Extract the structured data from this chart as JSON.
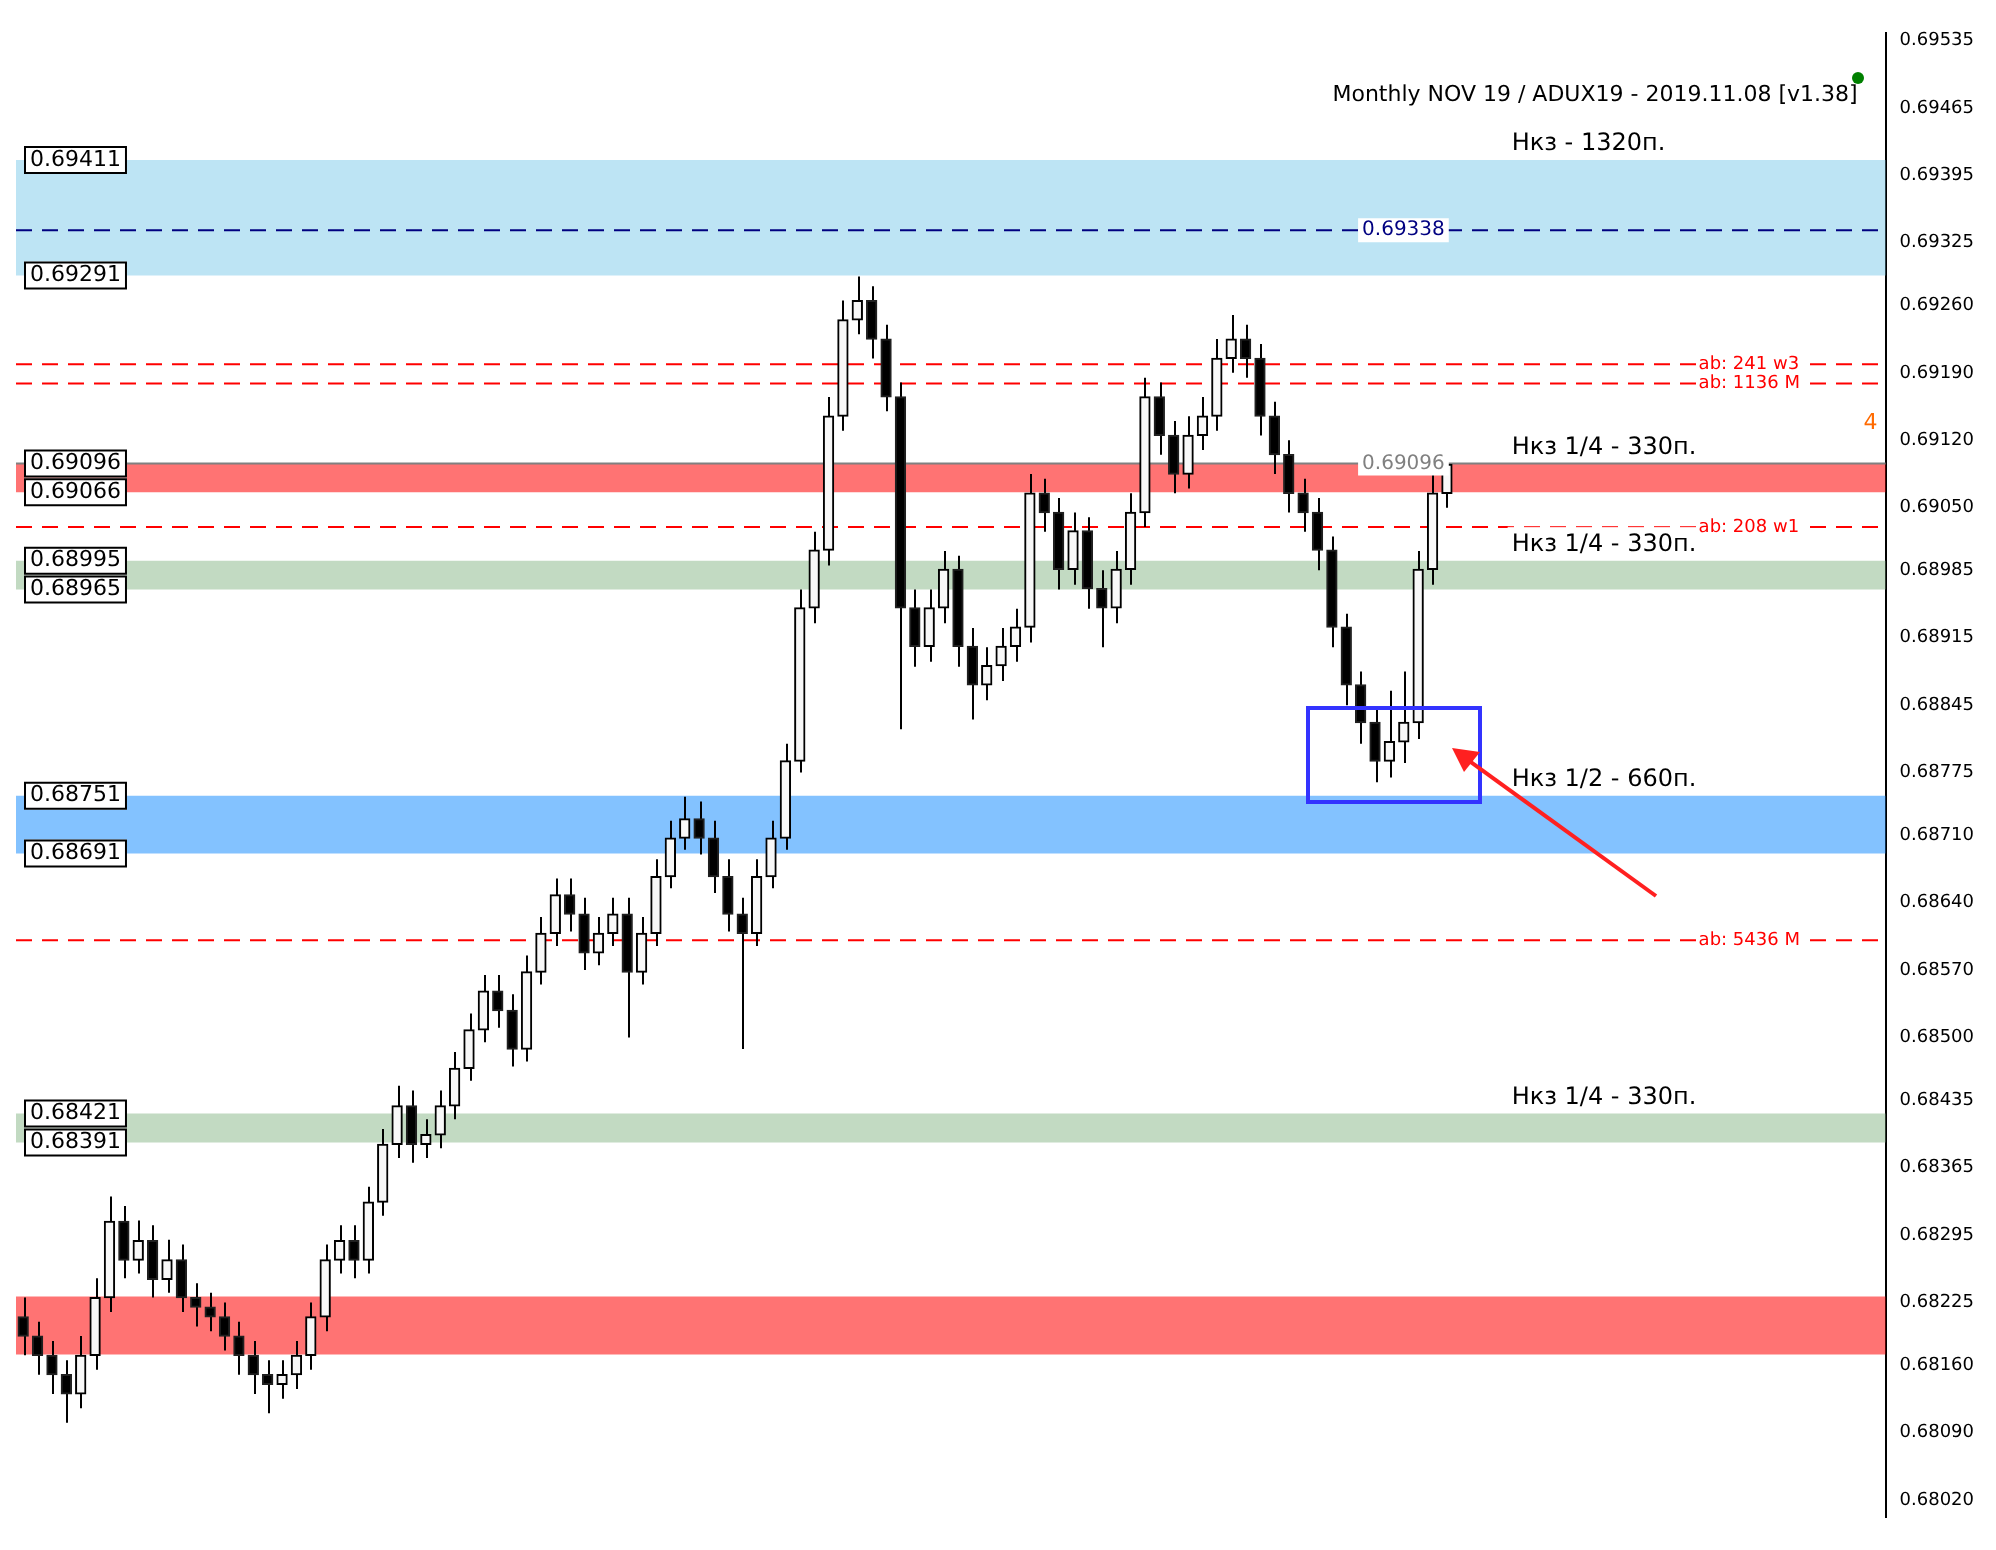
{
  "chart_data": {
    "type": "candlestick",
    "title": "Monthly NOV 19 / ADUX19 - 2019.11.08 [v1.38]",
    "categories": [
      null,
      null,
      null,
      null,
      null,
      null,
      null,
      null,
      null,
      null,
      null,
      null,
      null,
      null,
      null,
      null,
      null,
      null,
      null,
      null,
      null,
      null,
      null,
      null,
      null,
      null,
      null,
      null,
      null,
      null,
      null,
      null,
      null,
      null,
      null,
      null,
      null,
      null,
      null,
      null,
      null,
      null,
      null,
      null,
      null,
      null,
      null,
      null,
      null,
      null,
      null,
      null,
      null,
      null,
      null,
      null,
      null,
      null,
      null,
      null,
      null,
      null,
      null,
      null,
      null,
      null,
      null,
      null,
      null,
      null,
      null,
      null,
      null,
      null,
      null,
      null,
      null,
      null,
      null,
      null,
      null,
      null,
      null,
      null,
      null,
      null,
      null,
      null,
      null,
      null,
      null,
      null,
      null,
      null,
      null,
      null,
      null,
      null,
      null,
      null,
      null,
      null,
      null,
      null,
      null,
      null,
      null,
      null,
      null,
      null,
      null,
      null,
      null,
      null,
      null,
      null,
      null,
      null,
      null,
      null,
      null,
      null,
      null,
      null,
      null,
      null,
      null,
      null,
      null,
      null
    ],
    "ohlc": [
      [
        0.6821,
        0.6823,
        0.6817,
        0.6819
      ],
      [
        0.6819,
        0.68205,
        0.6815,
        0.6817
      ],
      [
        0.6817,
        0.68185,
        0.6813,
        0.6815
      ],
      [
        0.6815,
        0.68165,
        0.681,
        0.6813
      ],
      [
        0.6813,
        0.6819,
        0.68115,
        0.6817
      ],
      [
        0.6817,
        0.6825,
        0.68155,
        0.6823
      ],
      [
        0.6823,
        0.68335,
        0.68215,
        0.68309
      ],
      [
        0.68309,
        0.68325,
        0.6825,
        0.68269
      ],
      [
        0.68269,
        0.6831,
        0.68255,
        0.68289
      ],
      [
        0.68289,
        0.68305,
        0.6823,
        0.68249
      ],
      [
        0.68249,
        0.6829,
        0.68235,
        0.68269
      ],
      [
        0.68269,
        0.68285,
        0.68215,
        0.6823
      ],
      [
        0.6823,
        0.68245,
        0.682,
        0.6822
      ],
      [
        0.6822,
        0.68235,
        0.68195,
        0.6821
      ],
      [
        0.6821,
        0.68225,
        0.68175,
        0.6819
      ],
      [
        0.6819,
        0.68205,
        0.6815,
        0.6817
      ],
      [
        0.6817,
        0.68185,
        0.6813,
        0.6815
      ],
      [
        0.6815,
        0.68165,
        0.6811,
        0.6814
      ],
      [
        0.6814,
        0.68165,
        0.68125,
        0.6815
      ],
      [
        0.6815,
        0.68185,
        0.68135,
        0.6817
      ],
      [
        0.6817,
        0.68225,
        0.68155,
        0.6821
      ],
      [
        0.6821,
        0.68285,
        0.68195,
        0.68269
      ],
      [
        0.68269,
        0.68305,
        0.68255,
        0.68289
      ],
      [
        0.68289,
        0.68305,
        0.6825,
        0.68269
      ],
      [
        0.68269,
        0.68345,
        0.68255,
        0.68329
      ],
      [
        0.68329,
        0.68405,
        0.68315,
        0.68389
      ],
      [
        0.68389,
        0.6845,
        0.68375,
        0.68429
      ],
      [
        0.68429,
        0.68445,
        0.6837,
        0.68389
      ],
      [
        0.68389,
        0.68415,
        0.68375,
        0.68399
      ],
      [
        0.68399,
        0.68445,
        0.68385,
        0.68429
      ],
      [
        0.68429,
        0.68485,
        0.68415,
        0.68468
      ],
      [
        0.68468,
        0.68525,
        0.68455,
        0.68508
      ],
      [
        0.68508,
        0.68565,
        0.68495,
        0.68548
      ],
      [
        0.68548,
        0.68565,
        0.6851,
        0.68528
      ],
      [
        0.68528,
        0.68545,
        0.6847,
        0.68488
      ],
      [
        0.68488,
        0.68585,
        0.68475,
        0.68568
      ],
      [
        0.68568,
        0.68625,
        0.68555,
        0.68608
      ],
      [
        0.68608,
        0.68665,
        0.68595,
        0.68648
      ],
      [
        0.68648,
        0.68665,
        0.6861,
        0.68628
      ],
      [
        0.68628,
        0.68645,
        0.6857,
        0.68588
      ],
      [
        0.68588,
        0.68625,
        0.68575,
        0.68608
      ],
      [
        0.68608,
        0.68645,
        0.68595,
        0.68628
      ],
      [
        0.68628,
        0.68645,
        0.685,
        0.68568
      ],
      [
        0.68568,
        0.68625,
        0.68555,
        0.68608
      ],
      [
        0.68608,
        0.68685,
        0.68595,
        0.68667
      ],
      [
        0.68667,
        0.68725,
        0.68655,
        0.68707
      ],
      [
        0.68707,
        0.6875,
        0.68695,
        0.68727
      ],
      [
        0.68727,
        0.68745,
        0.6869,
        0.68707
      ],
      [
        0.68707,
        0.68725,
        0.6865,
        0.68667
      ],
      [
        0.68667,
        0.68685,
        0.6861,
        0.68628
      ],
      [
        0.68628,
        0.68645,
        0.68488,
        0.68608
      ],
      [
        0.68608,
        0.68685,
        0.68595,
        0.68667
      ],
      [
        0.68667,
        0.68725,
        0.68655,
        0.68707
      ],
      [
        0.68707,
        0.68805,
        0.68695,
        0.68787
      ],
      [
        0.68787,
        0.68965,
        0.68775,
        0.68946
      ],
      [
        0.68946,
        0.69025,
        0.6893,
        0.69006
      ],
      [
        0.69006,
        0.69165,
        0.6899,
        0.69145
      ],
      [
        0.69145,
        0.69265,
        0.6913,
        0.69245
      ],
      [
        0.69245,
        0.6929,
        0.6923,
        0.69265
      ],
      [
        0.69265,
        0.6928,
        0.69205,
        0.69225
      ],
      [
        0.69225,
        0.6924,
        0.6915,
        0.69165
      ],
      [
        0.69165,
        0.6918,
        0.6882,
        0.68946
      ],
      [
        0.68946,
        0.68965,
        0.68885,
        0.68906
      ],
      [
        0.68906,
        0.68965,
        0.6889,
        0.68946
      ],
      [
        0.68946,
        0.69005,
        0.6893,
        0.68986
      ],
      [
        0.68986,
        0.69,
        0.68885,
        0.68906
      ],
      [
        0.68906,
        0.68925,
        0.6883,
        0.68866
      ],
      [
        0.68866,
        0.68905,
        0.6885,
        0.68886
      ],
      [
        0.68886,
        0.68925,
        0.6887,
        0.68906
      ],
      [
        0.68906,
        0.68945,
        0.6889,
        0.68926
      ],
      [
        0.68926,
        0.69085,
        0.6891,
        0.69065
      ],
      [
        0.69065,
        0.6908,
        0.69025,
        0.69045
      ],
      [
        0.69045,
        0.6906,
        0.68965,
        0.68986
      ],
      [
        0.68986,
        0.69045,
        0.6897,
        0.69026
      ],
      [
        0.69026,
        0.6904,
        0.68945,
        0.68966
      ],
      [
        0.68966,
        0.68985,
        0.68905,
        0.68946
      ],
      [
        0.68946,
        0.69005,
        0.6893,
        0.68986
      ],
      [
        0.68986,
        0.69065,
        0.6897,
        0.69045
      ],
      [
        0.69045,
        0.69185,
        0.6903,
        0.69165
      ],
      [
        0.69165,
        0.6918,
        0.69105,
        0.69125
      ],
      [
        0.69125,
        0.6914,
        0.69065,
        0.69085
      ],
      [
        0.69085,
        0.69145,
        0.6907,
        0.69125
      ],
      [
        0.69125,
        0.69165,
        0.6911,
        0.69145
      ],
      [
        0.69145,
        0.69225,
        0.6913,
        0.69205
      ],
      [
        0.69205,
        0.6925,
        0.6919,
        0.69225
      ],
      [
        0.69225,
        0.6924,
        0.69185,
        0.69205
      ],
      [
        0.69205,
        0.6922,
        0.69125,
        0.69145
      ],
      [
        0.69145,
        0.6916,
        0.69085,
        0.69105
      ],
      [
        0.69105,
        0.6912,
        0.69045,
        0.69065
      ],
      [
        0.69065,
        0.6908,
        0.69025,
        0.69045
      ],
      [
        0.69045,
        0.6906,
        0.68985,
        0.69006
      ],
      [
        0.69006,
        0.6902,
        0.68905,
        0.68926
      ],
      [
        0.68926,
        0.6894,
        0.68845,
        0.68866
      ],
      [
        0.68866,
        0.6888,
        0.68805,
        0.68827
      ],
      [
        0.68827,
        0.6884,
        0.68765,
        0.68787
      ],
      [
        0.68787,
        0.6886,
        0.6877,
        0.68807
      ],
      [
        0.68807,
        0.6888,
        0.68785,
        0.68827
      ],
      [
        0.68827,
        0.69005,
        0.6881,
        0.68986
      ],
      [
        0.68986,
        0.69085,
        0.6897,
        0.69065
      ],
      [
        0.69065,
        0.691,
        0.6905,
        0.69095
      ],
      null,
      null,
      null,
      null,
      null,
      null,
      null,
      null,
      null,
      null,
      null,
      null,
      null,
      null,
      null,
      null,
      null,
      null,
      null,
      null,
      null,
      null,
      null,
      null,
      null,
      null,
      null,
      null,
      null,
      null
    ],
    "ylim": [
      0.68002,
      0.69543
    ],
    "yticks": [
      0.69535,
      0.69465,
      0.69395,
      0.69325,
      {
        "value": 0.6926,
        "label": "0.69260"
      },
      {
        "value": 0.6919,
        "label": "0.69190"
      },
      {
        "value": 0.6912,
        "label": "0.69120"
      },
      {
        "value": 0.6905,
        "label": "0.69050"
      },
      0.68985,
      0.68915,
      0.68845,
      0.68775,
      {
        "value": 0.6871,
        "label": "0.68710"
      },
      {
        "value": 0.6864,
        "label": "0.68640"
      },
      {
        "value": 0.6857,
        "label": "0.68570"
      },
      {
        "value": 0.685,
        "label": "0.68500"
      },
      0.68435,
      0.68365,
      0.68295,
      0.68225,
      {
        "value": 0.6816,
        "label": "0.68160"
      },
      {
        "value": 0.6809,
        "label": "0.68090"
      },
      {
        "value": 0.6802,
        "label": "0.68020"
      }
    ],
    "tick_labels": "y",
    "bands": [
      {
        "axis": "y",
        "from": 0.69291,
        "to": 0.69411,
        "label": "Нкз - 1320п.",
        "color": "#87ceeb"
      },
      {
        "axis": "y",
        "from": 0.68691,
        "to": 0.68751,
        "label": "Нкз 1/2 - 660п.",
        "color": "#1e90ff"
      },
      {
        "axis": "y",
        "from": 0.68391,
        "to": 0.68421,
        "label": "Нкз 1/4 - 330п.",
        "color": "#8fbc8f"
      },
      {
        "axis": "y",
        "from": 0.68965,
        "to": 0.68995,
        "label": "Нкз 1/4 - 330п.",
        "color": "#8fbc8f"
      },
      {
        "axis": "y",
        "from": 0.69066,
        "to": 0.69096,
        "label": "Нкз 1/4 - 330п.",
        "color": "#ff0000"
      },
      {
        "axis": "y",
        "from": 0.68171,
        "to": 0.68231,
        "color": "#ff0000"
      }
    ],
    "ref_lines": [
      {
        "axis": "y",
        "value": 0.69338,
        "label": "0.69338",
        "color": "#000080",
        "line_style": "dashed"
      },
      {
        "axis": "y",
        "value": 0.69096,
        "label": "0.69096",
        "color": "#808080",
        "line_style": "solid"
      },
      {
        "axis": "y",
        "value": 0.69199,
        "color": "#ff0000",
        "line_style": "dashed"
      },
      {
        "axis": "y",
        "value": 0.69179,
        "color": "#ff0000",
        "line_style": "dashed"
      },
      {
        "axis": "y",
        "value": 0.6903,
        "color": "#ff0000",
        "line_style": "dashed"
      },
      {
        "axis": "y",
        "value": 0.68601,
        "color": "#ff0000",
        "line_style": "dashed"
      }
    ],
    "annotations": [
      {
        "text": "0.69411",
        "y": 0.69411
      },
      {
        "text": "0.69291",
        "y": 0.69291
      },
      {
        "text": "0.68751",
        "y": 0.68751
      },
      {
        "text": "0.68691",
        "y": 0.68691
      },
      {
        "text": "0.68421",
        "y": 0.68421
      },
      {
        "text": "0.68391",
        "y": 0.68391
      },
      {
        "text": "0.68995",
        "y": 0.68995
      },
      {
        "text": "0.68965",
        "y": 0.68965
      },
      {
        "text": "0.69096",
        "y": 0.69096
      },
      {
        "text": "0.69066",
        "y": 0.69066
      },
      "4",
      {
        "text": "ab: 241 w3",
        "y": 0.69199
      },
      {
        "text": "ab: 1136 M",
        "y": 0.69179
      },
      {
        "text": "ab: 208 w1",
        "y": 0.6903
      },
      {
        "text": "ab: 5436 M",
        "y": 0.68601
      }
    ]
  }
}
